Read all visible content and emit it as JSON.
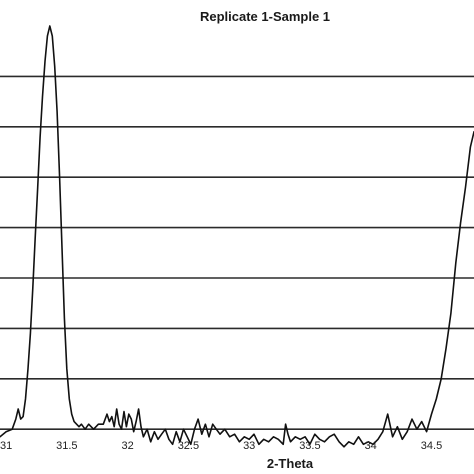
{
  "chart_data": {
    "type": "line",
    "title": "Replicate 1-Sample 1",
    "xlabel": "2-Theta",
    "ylabel": "",
    "xlim": [
      30.95,
      34.85
    ],
    "ylim": [
      0,
      9
    ],
    "x_ticks": [
      "31",
      "31.5",
      "32",
      "32.5",
      "33",
      "33.5",
      "34",
      "34.5"
    ],
    "y_gridlines": [
      1,
      2,
      3,
      4,
      5,
      6,
      7,
      8
    ],
    "grid": true,
    "legend": "none",
    "line_color": "#111111",
    "grid_color": "#2b2b2b",
    "series": [
      {
        "x": [
          30.95,
          31.0,
          31.05,
          31.08,
          31.1,
          31.12,
          31.14,
          31.16,
          31.18,
          31.2,
          31.22,
          31.24,
          31.26,
          31.28,
          31.3,
          31.32,
          31.34,
          31.36,
          31.38,
          31.4,
          31.42,
          31.44,
          31.46,
          31.48,
          31.5,
          31.52,
          31.54,
          31.56,
          31.58,
          31.6,
          31.62,
          31.65,
          31.68,
          31.72,
          31.76,
          31.8,
          31.83,
          31.85,
          31.87,
          31.89,
          31.91,
          31.93,
          31.95,
          31.97,
          31.99,
          32.01,
          32.03,
          32.05,
          32.07,
          32.09,
          32.11,
          32.13,
          32.16,
          32.19,
          32.22,
          32.25,
          32.28,
          32.31,
          32.34,
          32.37,
          32.4,
          32.43,
          32.46,
          32.49,
          32.52,
          32.55,
          32.58,
          32.61,
          32.64,
          32.67,
          32.7,
          32.73,
          32.76,
          32.8,
          32.84,
          32.88,
          32.92,
          32.96,
          33.0,
          33.04,
          33.08,
          33.12,
          33.16,
          33.2,
          33.24,
          33.28,
          33.3,
          33.32,
          33.34,
          33.38,
          33.42,
          33.46,
          33.5,
          33.54,
          33.58,
          33.62,
          33.66,
          33.7,
          33.74,
          33.78,
          33.82,
          33.86,
          33.9,
          33.94,
          33.98,
          34.02,
          34.06,
          34.1,
          34.14,
          34.18,
          34.22,
          34.26,
          34.3,
          34.34,
          34.38,
          34.42,
          34.46,
          34.5,
          34.54,
          34.58,
          34.62,
          34.66,
          34.7,
          34.74,
          34.78,
          34.82,
          34.85
        ],
        "y": [
          0.85,
          0.95,
          1.0,
          1.2,
          1.4,
          1.2,
          1.25,
          1.6,
          2.2,
          2.9,
          3.8,
          4.8,
          5.8,
          6.8,
          7.6,
          8.3,
          8.8,
          9.0,
          8.8,
          8.2,
          7.3,
          6.0,
          4.6,
          3.2,
          2.2,
          1.6,
          1.3,
          1.15,
          1.1,
          1.05,
          1.1,
          1.0,
          1.1,
          1.0,
          1.1,
          1.1,
          1.3,
          1.15,
          1.25,
          1.05,
          1.4,
          1.1,
          1.0,
          1.35,
          1.05,
          1.3,
          1.2,
          0.95,
          1.15,
          1.4,
          1.05,
          0.85,
          1.0,
          0.75,
          0.95,
          0.8,
          0.9,
          1.0,
          0.8,
          0.7,
          0.95,
          0.75,
          1.0,
          0.85,
          0.7,
          1.0,
          1.2,
          0.9,
          1.1,
          0.85,
          1.1,
          1.0,
          0.9,
          1.0,
          0.85,
          0.9,
          0.75,
          0.85,
          0.8,
          0.9,
          0.7,
          0.8,
          0.75,
          0.85,
          0.8,
          0.7,
          1.1,
          0.9,
          0.75,
          0.85,
          0.8,
          0.85,
          0.7,
          0.9,
          0.8,
          0.75,
          0.85,
          0.9,
          0.75,
          0.65,
          0.75,
          0.7,
          0.85,
          0.7,
          0.75,
          0.7,
          0.8,
          0.95,
          1.3,
          0.85,
          1.05,
          0.8,
          0.95,
          1.2,
          1.0,
          1.15,
          0.95,
          1.3,
          1.6,
          2.0,
          2.6,
          3.3,
          4.3,
          5.1,
          5.8,
          6.6,
          6.9
        ]
      }
    ]
  }
}
